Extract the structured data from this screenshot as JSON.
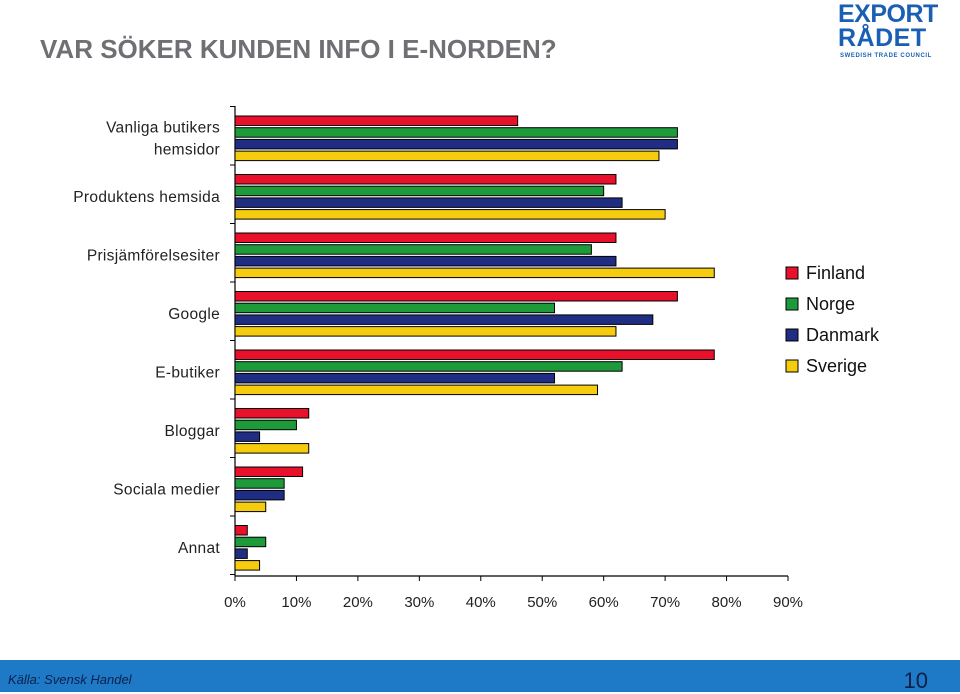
{
  "page": {
    "title": "VAR SÖKER KUNDEN INFO I E-NORDEN?",
    "source": "Källa: Svensk Handel",
    "page_number": "10"
  },
  "logo": {
    "line1": "EXPORT",
    "line2": "RÅDET",
    "tagline": "SWEDISH TRADE COUNCIL",
    "color": "#1a5fb4"
  },
  "chart_data": {
    "type": "bar",
    "orientation": "horizontal",
    "categories": [
      "Vanliga butikers hemsidor",
      "Produktens hemsida",
      "Prisjämförelsesiter",
      "Google",
      "E-butiker",
      "Bloggar",
      "Sociala medier",
      "Annat"
    ],
    "category_lines": [
      [
        "Vanliga butikers",
        "hemsidor"
      ],
      [
        "Produktens hemsida"
      ],
      [
        "Prisjämförelsesiter"
      ],
      [
        "Google"
      ],
      [
        "E-butiker"
      ],
      [
        "Bloggar"
      ],
      [
        "Sociala medier"
      ],
      [
        "Annat"
      ]
    ],
    "series": [
      {
        "name": "Finland",
        "color": "#e8102a",
        "values": [
          46,
          62,
          62,
          72,
          78,
          12,
          11,
          2
        ]
      },
      {
        "name": "Norge",
        "color": "#1d9a3a",
        "values": [
          72,
          60,
          58,
          52,
          63,
          10,
          8,
          5
        ]
      },
      {
        "name": "Danmark",
        "color": "#1f2d82",
        "values": [
          72,
          63,
          62,
          68,
          52,
          4,
          8,
          2
        ]
      },
      {
        "name": "Sverige",
        "color": "#f5cc0e",
        "values": [
          69,
          70,
          78,
          62,
          59,
          12,
          5,
          4
        ]
      }
    ],
    "x_ticks": [
      "0%",
      "10%",
      "20%",
      "30%",
      "40%",
      "50%",
      "60%",
      "70%",
      "80%",
      "90%"
    ],
    "xlim": [
      0,
      90
    ],
    "unit": "%",
    "grid": false,
    "legend_position": "right"
  }
}
